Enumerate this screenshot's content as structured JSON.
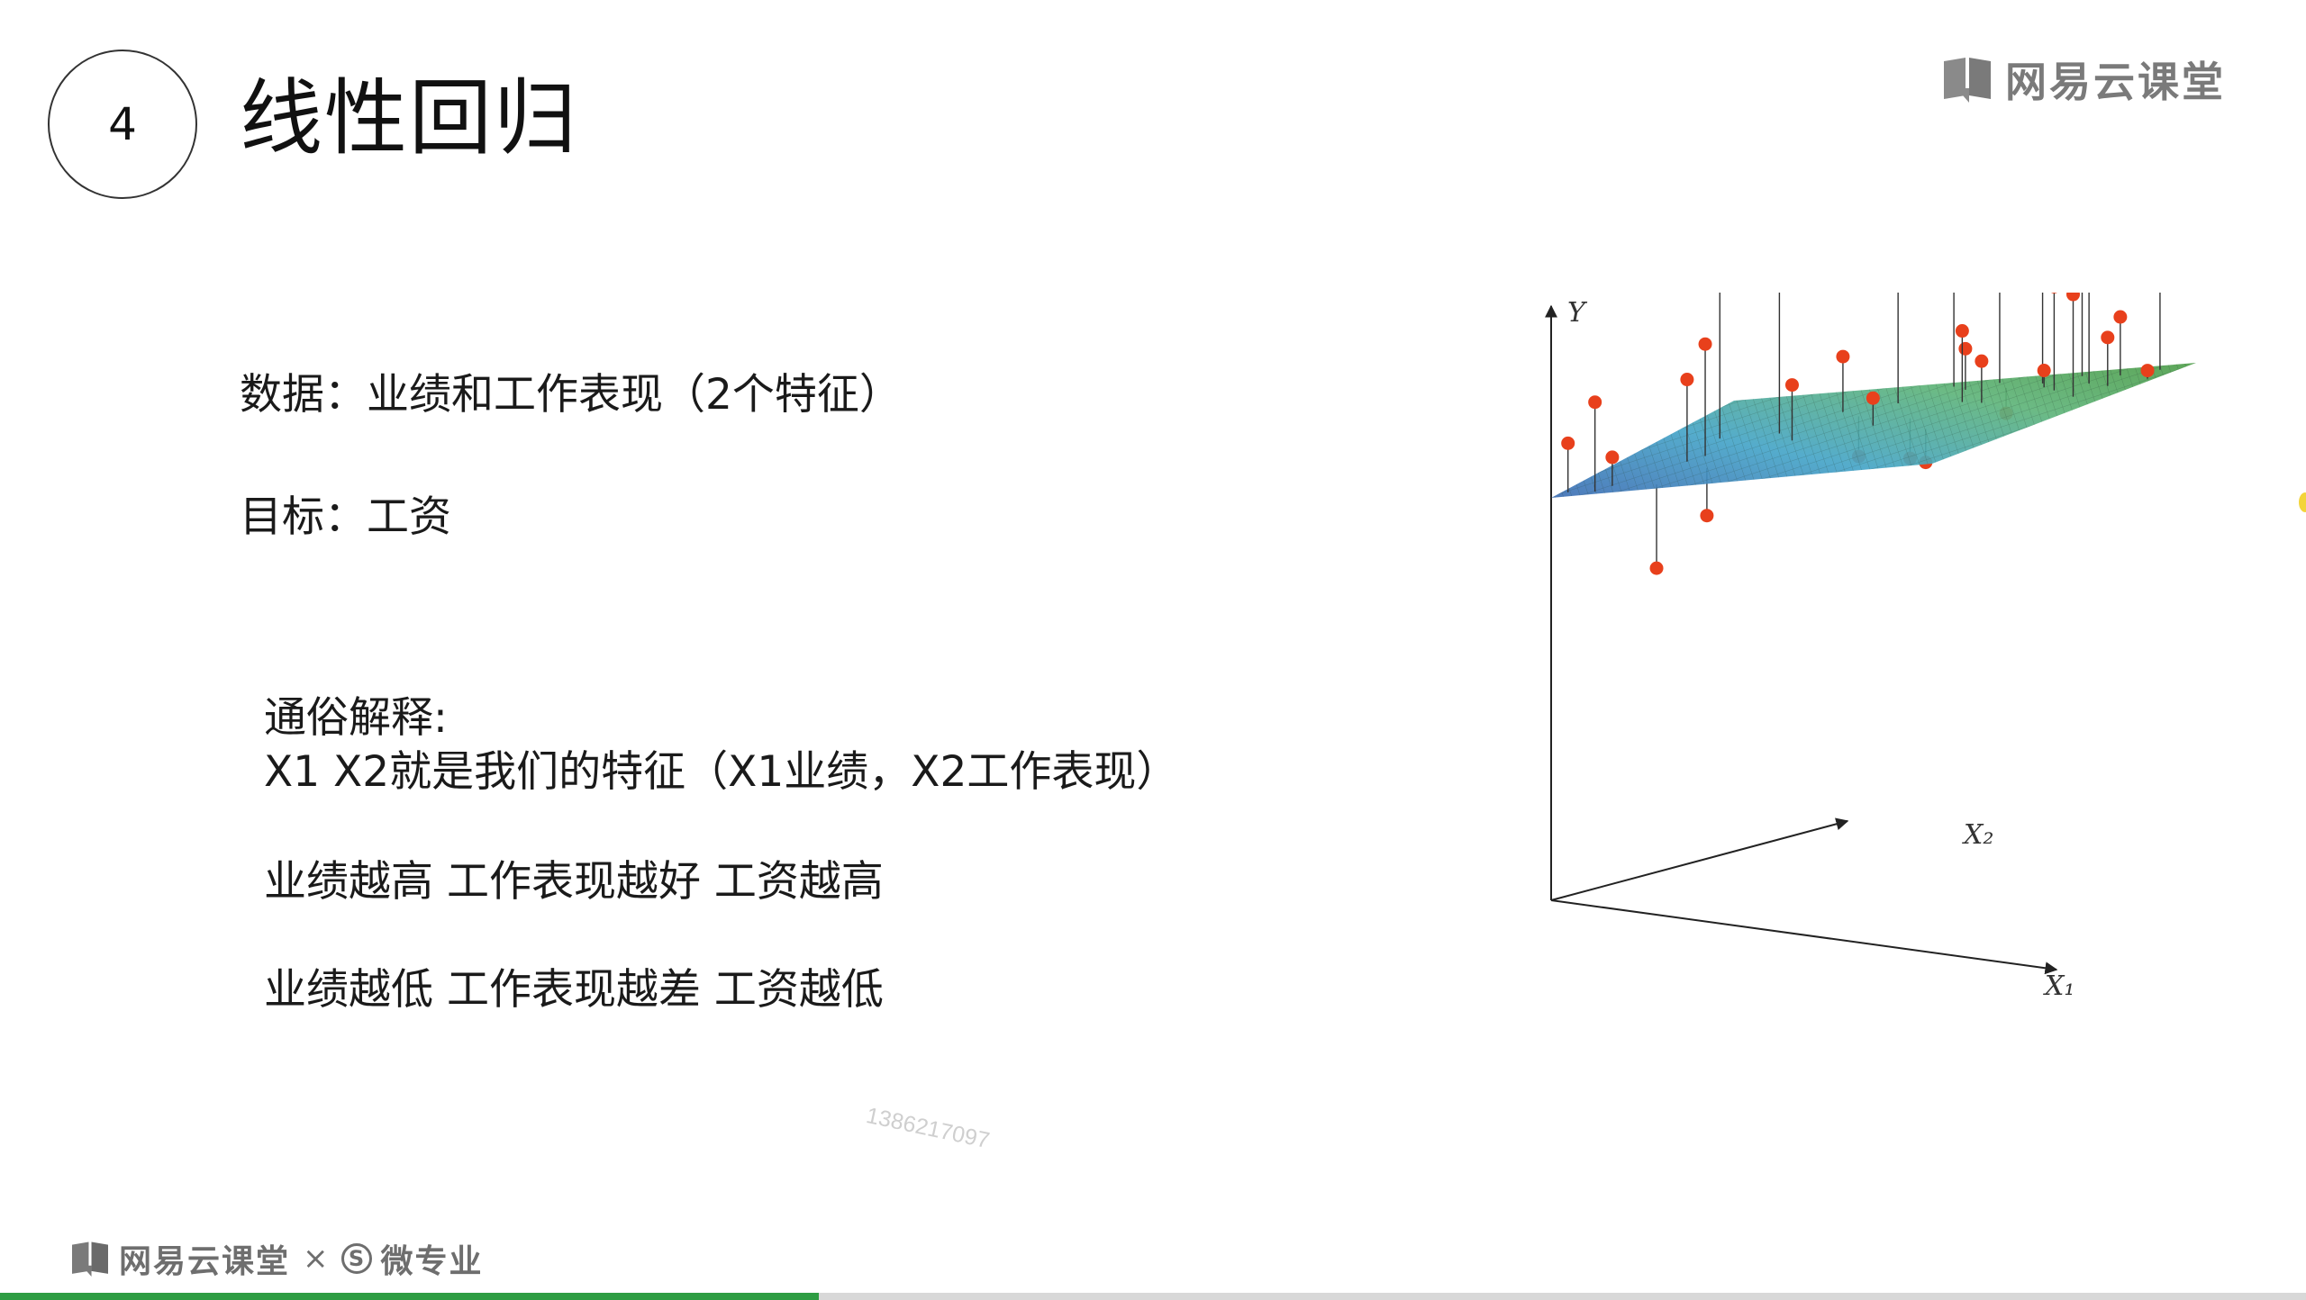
{
  "slide": {
    "number": "4",
    "title": "线性回归",
    "brand_top": "网易云课堂",
    "lines": {
      "data": "数据：业绩和工作表现（2个特征）",
      "target": "目标：工资",
      "explain_heading": "通俗解释:",
      "explain_features": "X1 X2就是我们的特征（X1业绩，X2工作表现）",
      "high_case": "业绩越高  工作表现越好  工资越高",
      "low_case": "业绩越低  工作表现越差  工资越低"
    },
    "watermark": "1386217097"
  },
  "chart_data": {
    "type": "scatter",
    "title": "",
    "axes": {
      "y": "Y",
      "x1": "X₁",
      "x2": "X₂"
    },
    "plane_colors": [
      "#3f6fb5",
      "#46a5c8",
      "#5fb47a",
      "#4f9e4a"
    ],
    "point_color": "#e8401c",
    "points": [
      {
        "x": 0.02,
        "y": 0.05,
        "z": 0.42
      },
      {
        "x": 0.1,
        "y": 0.03,
        "z": 0.75
      },
      {
        "x": 0.12,
        "y": 0.08,
        "z": 0.33
      },
      {
        "x": 0.16,
        "y": 0.55,
        "z": 1.45
      },
      {
        "x": 0.2,
        "y": 0.3,
        "z": 0.85
      },
      {
        "x": 0.22,
        "y": 0.35,
        "z": 1.1
      },
      {
        "x": 0.25,
        "y": 0.05,
        "z": -0.45
      },
      {
        "x": 0.3,
        "y": 0.55,
        "z": 1.7
      },
      {
        "x": 0.3,
        "y": 0.2,
        "z": -0.1
      },
      {
        "x": 0.35,
        "y": 0.75,
        "z": 0.9
      },
      {
        "x": 0.38,
        "y": 0.45,
        "z": 0.8
      },
      {
        "x": 0.42,
        "y": 0.68,
        "z": 0.2
      },
      {
        "x": 0.45,
        "y": 0.8,
        "z": 1.55
      },
      {
        "x": 0.5,
        "y": 0.95,
        "z": 1.45
      },
      {
        "x": 0.52,
        "y": 0.55,
        "z": 0.7
      },
      {
        "x": 0.55,
        "y": 0.9,
        "z": 0.95
      },
      {
        "x": 0.58,
        "y": 0.6,
        "z": 0.25
      },
      {
        "x": 0.6,
        "y": 0.95,
        "z": 2.05
      },
      {
        "x": 0.62,
        "y": 0.75,
        "z": 1.15
      },
      {
        "x": 0.65,
        "y": 0.88,
        "z": 0.5
      },
      {
        "x": 0.68,
        "y": 0.72,
        "z": 0.95
      },
      {
        "x": 0.7,
        "y": 0.45,
        "z": 0.3
      },
      {
        "x": 0.72,
        "y": 0.9,
        "z": 1.7
      },
      {
        "x": 0.75,
        "y": 0.85,
        "z": 0.85
      },
      {
        "x": 0.78,
        "y": 0.95,
        "z": 1.95
      },
      {
        "x": 0.8,
        "y": 0.8,
        "z": 1.5
      },
      {
        "x": 0.85,
        "y": 0.85,
        "z": 1.65
      },
      {
        "x": 0.88,
        "y": 0.92,
        "z": 1.25
      },
      {
        "x": 0.9,
        "y": 0.7,
        "z": 1.5
      },
      {
        "x": 0.92,
        "y": 0.8,
        "z": 1.15
      },
      {
        "x": 0.95,
        "y": 0.95,
        "z": 1.75
      },
      {
        "x": 0.98,
        "y": 0.85,
        "z": 0.9
      }
    ]
  },
  "footer": {
    "brand": "网易云课堂",
    "separator": "×",
    "badge": "S",
    "partner": "微专业"
  },
  "progress": {
    "value": 0.355,
    "color": "#2e9d43",
    "track": "#d8d8d8"
  }
}
